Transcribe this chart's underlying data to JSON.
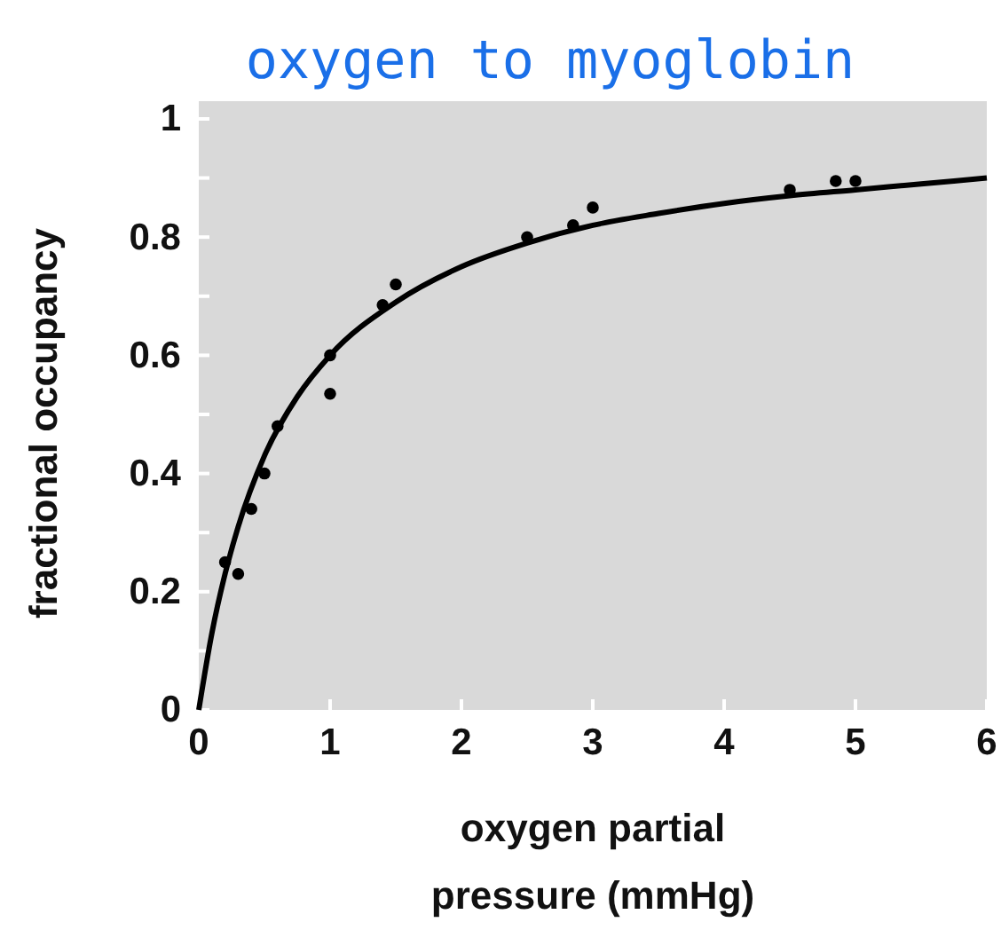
{
  "chart_data": {
    "type": "scatter",
    "title": "oxygen to myoglobin",
    "xlabel": "oxygen partial\npressure (mmHg)",
    "ylabel": "fractional occupancy",
    "xlim": [
      0,
      6
    ],
    "ylim": [
      0,
      1.03
    ],
    "xticks": [
      0,
      1,
      2,
      3,
      4,
      5,
      6
    ],
    "yticks": [
      0,
      {
        "value": 0.1,
        "label": null
      },
      0.2,
      {
        "value": 0.3,
        "label": null
      },
      0.4,
      {
        "value": 0.5,
        "label": null
      },
      0.6,
      {
        "value": 0.7,
        "label": null
      },
      0.8,
      {
        "value": 0.9,
        "label": null
      },
      1
    ],
    "grid": false,
    "series": [
      {
        "color": "#000000",
        "marker": "circle",
        "x": [
          0.2,
          0.3,
          0.4,
          0.5,
          0.6,
          1.0,
          1.0,
          1.4,
          1.5,
          2.5,
          2.85,
          3.0,
          4.5,
          4.85,
          5.0
        ],
        "values": [
          0.25,
          0.23,
          0.34,
          0.4,
          0.48,
          0.6,
          0.535,
          0.685,
          0.72,
          0.8,
          0.82,
          0.85,
          0.88,
          0.895,
          0.895
        ]
      },
      {
        "type": "line",
        "color": "#000000",
        "marker": "none",
        "x": [
          0,
          0.1,
          0.2,
          0.3,
          0.5,
          0.75,
          1,
          1.5,
          2,
          2.5,
          3,
          3.5,
          4,
          4.5,
          5,
          5.5,
          6
        ],
        "values": [
          0,
          0.13,
          0.23,
          0.31,
          0.43,
          0.53,
          0.6,
          0.69,
          0.75,
          0.79,
          0.82,
          0.84,
          0.857,
          0.87,
          0.88,
          0.89,
          0.9
        ]
      }
    ]
  }
}
